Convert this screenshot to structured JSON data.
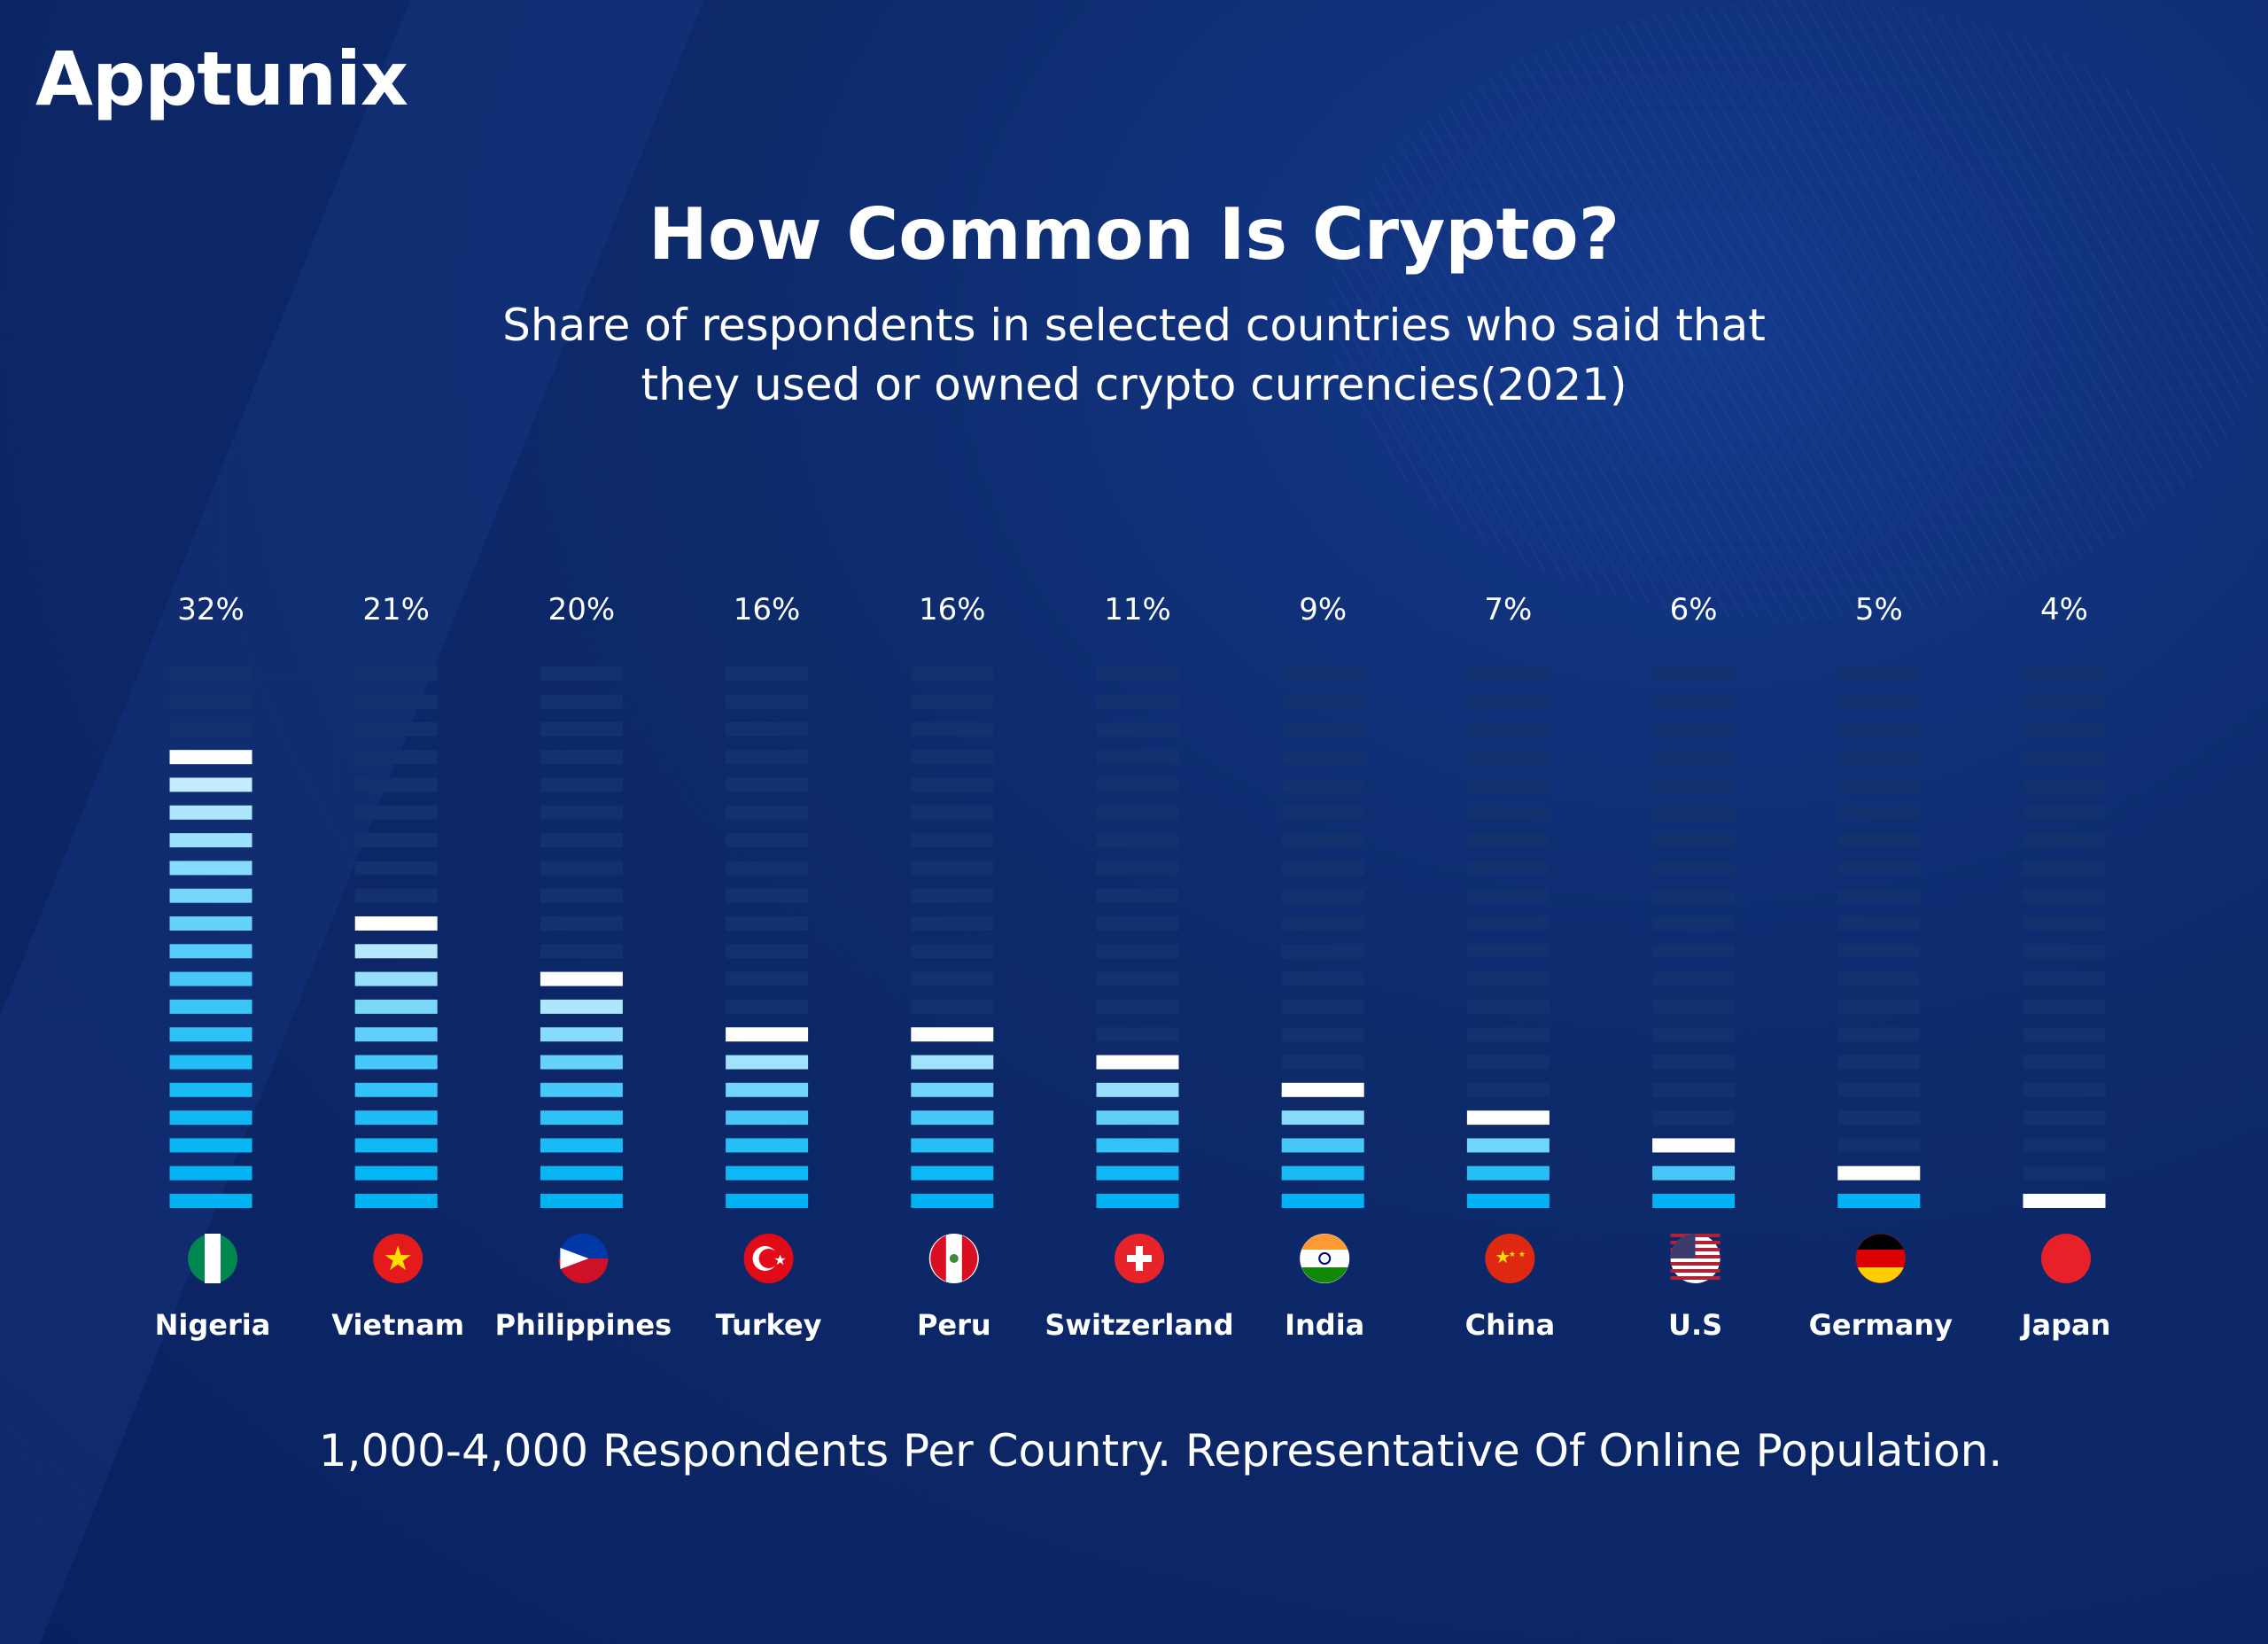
{
  "logo": "Apptunix",
  "colors": {
    "background": "#0b2463",
    "unlit_segment": "#12316f",
    "lit_bottom": "#00b4f4",
    "lit_top": "#ffffff"
  },
  "chart_data": {
    "type": "bar",
    "title": "How Common Is Crypto?",
    "subtitle": [
      "Share of respondents in selected countries who said that",
      "they used or owned crypto currencies(2021)"
    ],
    "categories": [
      "Nigeria",
      "Vietnam",
      "Philippines",
      "Turkey",
      "Peru",
      "Switzerland",
      "India",
      "China",
      "U.S",
      "Germany",
      "Japan"
    ],
    "values": [
      32,
      21,
      20,
      16,
      16,
      11,
      9,
      7,
      6,
      5,
      4
    ],
    "data_labels": [
      "32%",
      "21%",
      "20%",
      "16%",
      "16%",
      "11%",
      "9%",
      "7%",
      "6%",
      "5%",
      "4%"
    ],
    "lit_segments": [
      17,
      11,
      9,
      7,
      7,
      6,
      5,
      4,
      3,
      2,
      1
    ],
    "segments_per_column": 20,
    "flags": [
      "nigeria-flag",
      "vietnam-flag",
      "philippines-flag",
      "turkey-flag",
      "peru-flag",
      "switzerland-flag",
      "india-flag",
      "china-flag",
      "us-flag",
      "germany-flag",
      "japan-flag"
    ],
    "footnote": "1,000-4,000 Respondents Per Country. Representative Of Online Population."
  }
}
